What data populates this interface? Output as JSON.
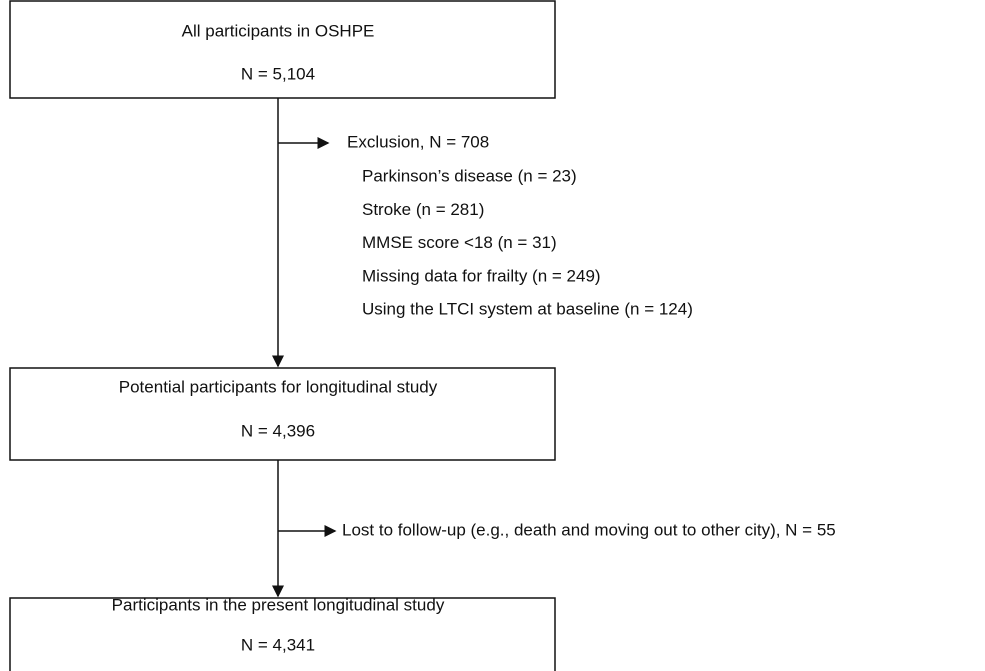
{
  "nodes": [
    {
      "label": "All participants in OSHPE",
      "count": "N = 5,104"
    },
    {
      "label": "Potential participants for longitudinal study",
      "count": "N = 4,396"
    },
    {
      "label": "Participants in the present longitudinal study",
      "count": "N = 4,341"
    }
  ],
  "exclusions": [
    {
      "label": "Exclusion, N = 708",
      "items": [
        "Parkinson’s disease (n = 23)",
        "Stroke (n = 281)",
        "MMSE score <18 (n = 31)",
        "Missing data for frailty (n = 249)",
        "Using the LTCI system at baseline (n = 124)"
      ]
    },
    {
      "label": "Lost to follow-up (e.g., death and moving out to other city), N = 55",
      "items": []
    }
  ]
}
